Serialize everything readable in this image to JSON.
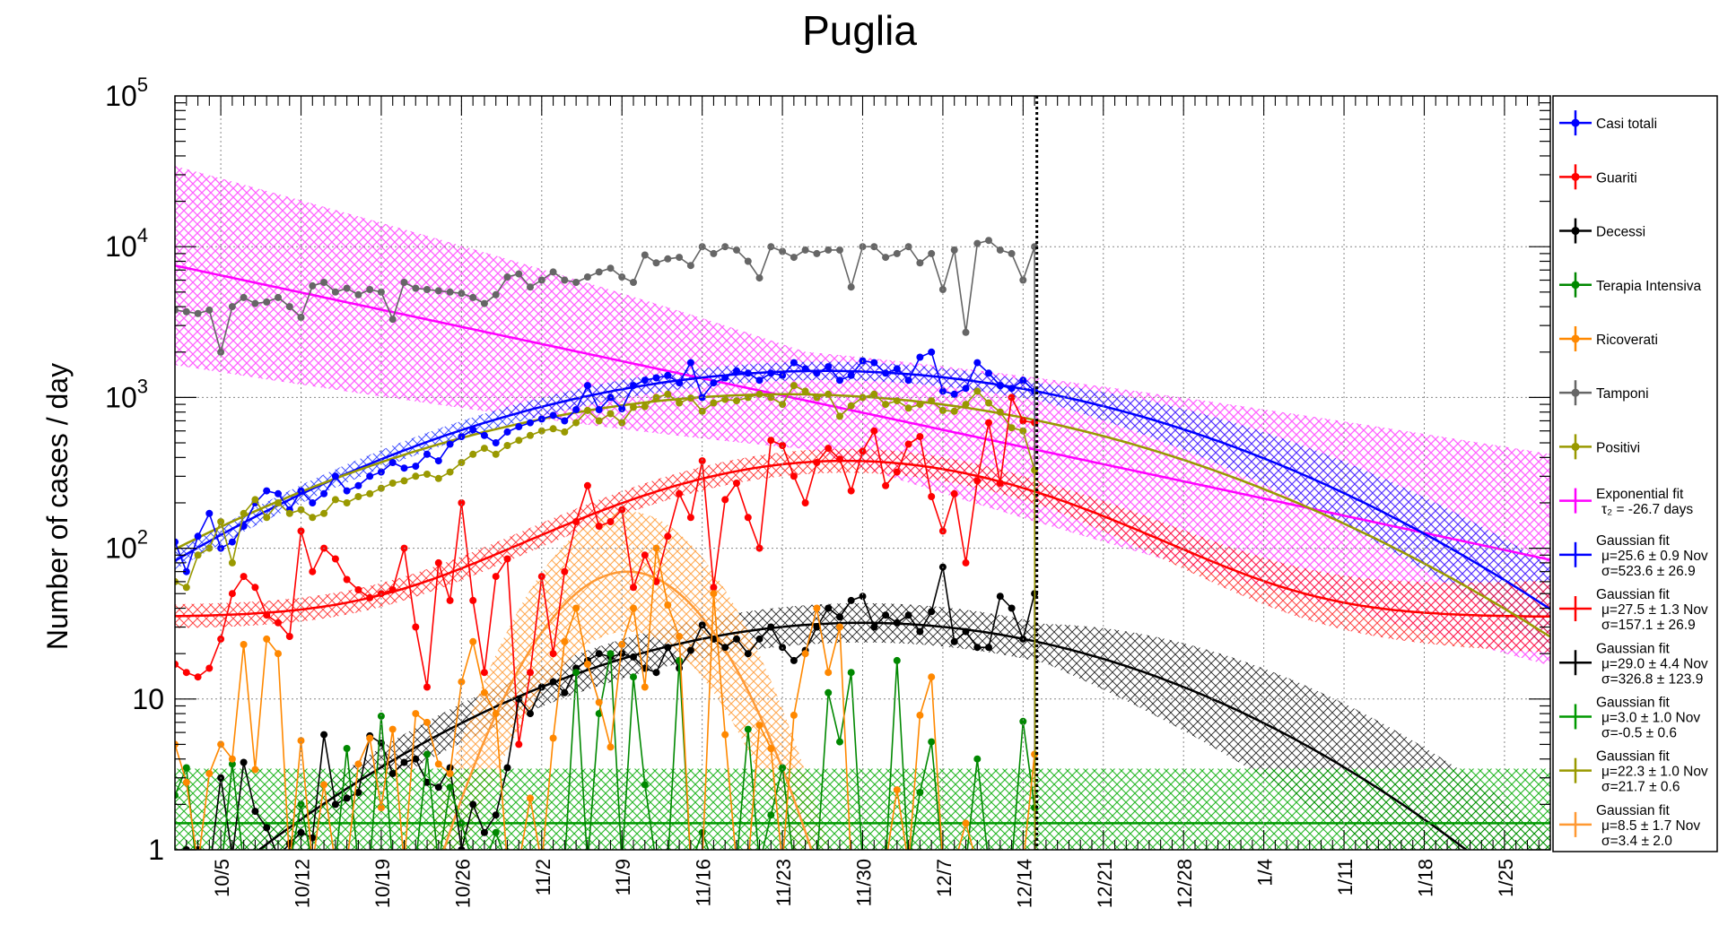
{
  "chart_data": {
    "type": "line",
    "title": "Puglia",
    "ylabel": "Number of cases / day",
    "xlabel": "",
    "yscale": "log",
    "ylim": [
      1,
      100000
    ],
    "xlim": [
      0,
      120
    ],
    "grid": true,
    "legend_position": "right",
    "last_data_index": 75,
    "y_ticks": [
      {
        "value": 1,
        "label": "1"
      },
      {
        "value": 10,
        "label": "10"
      },
      {
        "value": 100,
        "label": "10",
        "sup": "2"
      },
      {
        "value": 1000,
        "label": "10",
        "sup": "3"
      },
      {
        "value": 10000,
        "label": "10",
        "sup": "4"
      },
      {
        "value": 100000,
        "label": "10",
        "sup": "5"
      }
    ],
    "x_ticks": [
      {
        "day": 4,
        "label": "10/5"
      },
      {
        "day": 11,
        "label": "10/12"
      },
      {
        "day": 18,
        "label": "10/19"
      },
      {
        "day": 25,
        "label": "10/26"
      },
      {
        "day": 32,
        "label": "11/2"
      },
      {
        "day": 39,
        "label": "11/9"
      },
      {
        "day": 46,
        "label": "11/16"
      },
      {
        "day": 53,
        "label": "11/23"
      },
      {
        "day": 60,
        "label": "11/30"
      },
      {
        "day": 67,
        "label": "12/7"
      },
      {
        "day": 74,
        "label": "12/14"
      },
      {
        "day": 81,
        "label": "12/21"
      },
      {
        "day": 88,
        "label": "12/28"
      },
      {
        "day": 95,
        "label": "1/4"
      },
      {
        "day": 102,
        "label": "1/11"
      },
      {
        "day": 109,
        "label": "1/18"
      },
      {
        "day": 116,
        "label": "1/25"
      }
    ],
    "series": [
      {
        "name": "Casi totali",
        "color": "#0000ff",
        "values": [
          110,
          70,
          120,
          170,
          100,
          110,
          140,
          200,
          240,
          230,
          180,
          240,
          200,
          230,
          300,
          240,
          260,
          300,
          320,
          370,
          340,
          350,
          420,
          380,
          490,
          550,
          610,
          560,
          500,
          590,
          640,
          680,
          720,
          760,
          700,
          830,
          1200,
          830,
          1000,
          840,
          1200,
          1300,
          1350,
          1400,
          1250,
          1700,
          1000,
          1250,
          1350,
          1500,
          1450,
          1300,
          1450,
          1400,
          1700,
          1550,
          1450,
          1600,
          1300,
          1400,
          1750,
          1700,
          1450,
          1550,
          1300,
          1850,
          2000,
          1100,
          1050,
          1150,
          1700,
          1450,
          1200,
          1150,
          1300,
          1100
        ]
      },
      {
        "name": "Guariti",
        "color": "#ff0000",
        "values": [
          17,
          15,
          14,
          16,
          25,
          50,
          65,
          55,
          36,
          32,
          26,
          130,
          70,
          100,
          85,
          62,
          53,
          47,
          50,
          53,
          100,
          30,
          12,
          80,
          45,
          200,
          45,
          15,
          65,
          85,
          5,
          15,
          65,
          20,
          70,
          150,
          260,
          140,
          150,
          180,
          55,
          90,
          60,
          120,
          230,
          160,
          380,
          55,
          210,
          270,
          160,
          100,
          520,
          480,
          300,
          200,
          370,
          460,
          390,
          240,
          440,
          600,
          260,
          320,
          490,
          550,
          220,
          130,
          230,
          80,
          280,
          680,
          270,
          1000,
          700,
          680
        ]
      },
      {
        "name": "Decessi",
        "color": "#000000",
        "values": [
          0.9,
          1.0,
          1.0,
          0.7,
          3.0,
          0.9,
          3.8,
          1.8,
          1.4,
          0.9,
          1.1,
          1.3,
          1.2,
          5.8,
          2.0,
          2.2,
          2.4,
          5.7,
          5.1,
          3.2,
          3.8,
          4.0,
          2.8,
          2.6,
          3.5,
          1.0,
          2.0,
          1.3,
          1.7,
          3.5,
          10,
          8,
          12,
          13,
          11,
          16,
          18,
          20,
          19,
          20,
          19,
          16,
          15,
          22,
          16,
          21,
          31,
          25,
          22,
          25,
          20,
          25,
          30,
          22,
          18,
          21,
          30,
          40,
          35,
          45,
          48,
          30,
          36,
          32,
          36,
          28,
          38,
          75,
          24,
          28,
          22,
          22,
          48,
          40,
          25,
          50
        ]
      },
      {
        "name": "Terapia Intensiva",
        "color": "#008800",
        "values": [
          2.3,
          3.5,
          0.6,
          0.8,
          0.7,
          3.7,
          0.8,
          0.9,
          0.8,
          0.9,
          0.8,
          2.0,
          0.8,
          0.9,
          0.8,
          4.7,
          0.8,
          0.8,
          7.7,
          0.8,
          0.8,
          0.8,
          4.3,
          0.8,
          2.6,
          1.5,
          0.8,
          0.8,
          1.3,
          0.8,
          0.8,
          0.8,
          0.8,
          0.8,
          0.8,
          15,
          0.8,
          8.0,
          20,
          0.8,
          14,
          2.7,
          0.8,
          0.8,
          18,
          0.8,
          1.3,
          0.8,
          0.8,
          0.8,
          6.3,
          0.8,
          1.7,
          3.5,
          0.8,
          0.8,
          0.8,
          11,
          5.2,
          15,
          0.8,
          0.8,
          0.8,
          18,
          0.8,
          2.4,
          5.2,
          0.8,
          0.8,
          0.8,
          4.0,
          0.8,
          0.8,
          0.8,
          7.1,
          1.9
        ]
      },
      {
        "name": "Ricoverati",
        "color": "#ff8800",
        "values": [
          5.0,
          2.8,
          0.8,
          3.2,
          5.0,
          4.0,
          23,
          3.4,
          25,
          20,
          0.8,
          5.3,
          0.8,
          2.7,
          0.8,
          0.8,
          3.7,
          5.5,
          1.9,
          6.3,
          0.8,
          8.0,
          7.0,
          3.7,
          3.2,
          13,
          24,
          11,
          8.0,
          0.8,
          0.8,
          2.2,
          0.8,
          5.5,
          24,
          40,
          17,
          9.5,
          4.8,
          23,
          40,
          12,
          100,
          42,
          26,
          0.8,
          0.8,
          50,
          5.8,
          0.8,
          0.8,
          6.7,
          4.7,
          0.8,
          7.8,
          20,
          40,
          15,
          30,
          0.8,
          0.8,
          0.8,
          0.8,
          2.5,
          0.8,
          7.8,
          14,
          0.8,
          0.8,
          1.5,
          0.8,
          0.8,
          0.8,
          0.8,
          0.8,
          4.3
        ]
      },
      {
        "name": "Tamponi",
        "color": "#666666",
        "values": [
          3800,
          3700,
          3600,
          3800,
          2000,
          4000,
          4600,
          4200,
          4300,
          4600,
          4000,
          3400,
          5500,
          5800,
          5000,
          5300,
          4800,
          5200,
          5000,
          3300,
          5800,
          5300,
          5200,
          5100,
          5000,
          4900,
          4600,
          4200,
          4800,
          6300,
          6600,
          5400,
          6000,
          6800,
          6000,
          5800,
          6300,
          6800,
          7200,
          6300,
          5800,
          8800,
          7800,
          8300,
          8500,
          7500,
          10000,
          9000,
          10000,
          9500,
          8000,
          6200,
          10000,
          9300,
          8500,
          9500,
          9000,
          9500,
          9500,
          5400,
          10000,
          10000,
          8500,
          9000,
          10000,
          7800,
          9000,
          5200,
          9500,
          2700,
          10500,
          11000,
          9500,
          9000,
          6000,
          10000
        ]
      },
      {
        "name": "Positivi",
        "color": "#999900",
        "values": [
          60,
          55,
          90,
          100,
          150,
          80,
          170,
          210,
          160,
          200,
          170,
          180,
          160,
          170,
          210,
          200,
          220,
          230,
          250,
          270,
          280,
          300,
          310,
          290,
          320,
          370,
          420,
          460,
          420,
          480,
          520,
          560,
          600,
          620,
          590,
          680,
          820,
          700,
          780,
          680,
          860,
          870,
          1000,
          1050,
          920,
          990,
          810,
          920,
          970,
          950,
          1000,
          1050,
          1000,
          900,
          1200,
          1100,
          1000,
          1050,
          750,
          880,
          1000,
          1050,
          900,
          950,
          850,
          900,
          950,
          820,
          810,
          900,
          1100,
          920,
          800,
          630,
          600,
          330
        ]
      }
    ],
    "fits": [
      {
        "name": "Exponential fit",
        "subtitle": "τ₂ = -26.7 days",
        "color": "#ff00ff",
        "kind": "exp",
        "a": 7500,
        "tau": -26.7
      },
      {
        "name": "Gaussian fit",
        "params": [
          "μ=25.6 ± 0.9 Nov",
          "σ=523.6 ± 26.9"
        ],
        "color": "#0000ff",
        "kind": "gauss",
        "A": 1500,
        "mu": 56.6,
        "sigma": 23.5,
        "base": 0
      },
      {
        "name": "Gaussian fit",
        "params": [
          "μ=27.5 ± 1.3 Nov",
          "σ=157.1 ± 26.9"
        ],
        "color": "#ff0000",
        "kind": "gauss",
        "A": 345,
        "mu": 58.5,
        "sigma": 16,
        "base": 35
      },
      {
        "name": "Gaussian fit",
        "params": [
          "μ=29.0 ± 4.4 Nov",
          "σ=326.8 ± 123.9"
        ],
        "color": "#000000",
        "kind": "gauss",
        "A": 32,
        "mu": 60,
        "sigma": 20,
        "base": 0
      },
      {
        "name": "Gaussian fit",
        "params": [
          "μ=3.0 ± 1.0 Nov",
          "σ=-0.5 ± 0.6"
        ],
        "color": "#009900",
        "kind": "flat",
        "value": 1.5
      },
      {
        "name": "Gaussian fit",
        "params": [
          "μ=22.3 ± 1.0 Nov",
          "σ=21.7 ± 0.6"
        ],
        "color": "#999900",
        "kind": "gauss",
        "A": 1050,
        "mu": 53.3,
        "sigma": 24.5,
        "base": 0
      },
      {
        "name": "Gaussian fit",
        "params": [
          "μ=8.5 ± 1.7 Nov",
          "σ=3.4 ± 2.0"
        ],
        "color": "#ff9933",
        "kind": "gauss",
        "A": 70,
        "mu": 39.5,
        "sigma": 5.5,
        "base": 0
      }
    ]
  }
}
